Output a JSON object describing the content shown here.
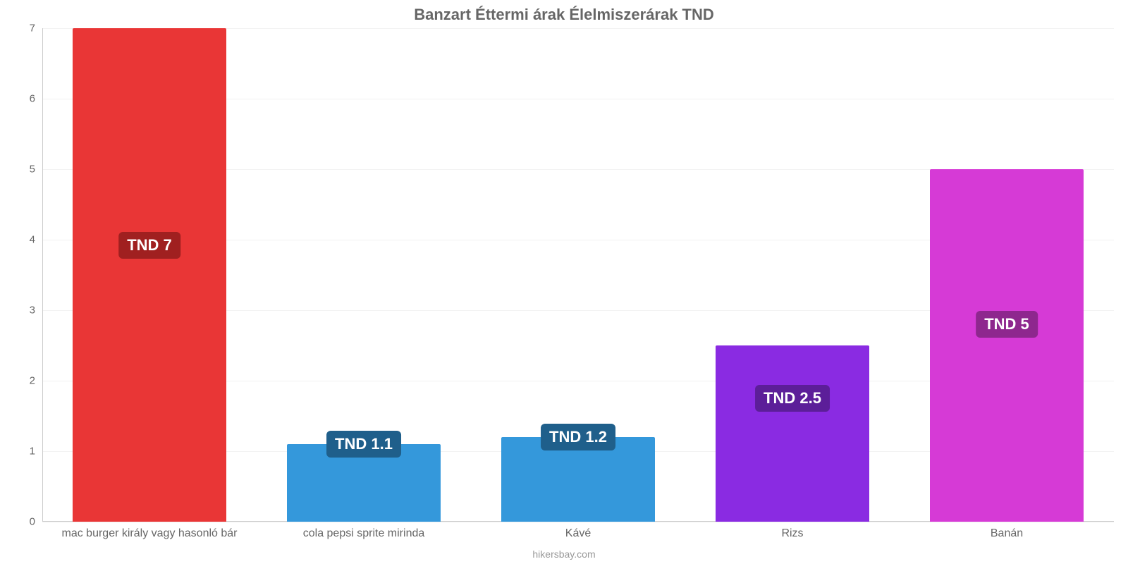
{
  "chart": {
    "type": "bar",
    "title": "Banzart Éttermi árak Élelmiszerárak TND",
    "title_fontsize": 22,
    "title_color": "#666666",
    "footer": "hikersbay.com",
    "footer_fontsize": 14,
    "footer_color": "#999999",
    "background_color": "#ffffff",
    "grid_color": "#f2f2f2",
    "axis_color": "#cccccc",
    "tick_label_color": "#666666",
    "tick_fontsize": 15,
    "x_tick_fontsize": 16,
    "ylim": [
      0,
      7
    ],
    "yticks": [
      0,
      1,
      2,
      3,
      4,
      5,
      6,
      7
    ],
    "bar_width_ratio": 0.72,
    "categories": [
      "mac burger király vagy hasonló bár",
      "cola pepsi sprite mirinda",
      "Kávé",
      "Rizs",
      "Banán"
    ],
    "values": [
      7,
      1.1,
      1.2,
      2.5,
      5
    ],
    "bar_colors": [
      "#e93636",
      "#3498db",
      "#3498db",
      "#8a2be2",
      "#d63ad6"
    ],
    "value_labels": [
      "TND 7",
      "TND 1.1",
      "TND 1.2",
      "TND 2.5",
      "TND 5"
    ],
    "badge_fontsize": 22,
    "badge_colors": [
      "#a02020",
      "#1f5f8b",
      "#1f5f8b",
      "#5c1e99",
      "#8e278e"
    ],
    "badge_text_color": "#ffffff"
  }
}
